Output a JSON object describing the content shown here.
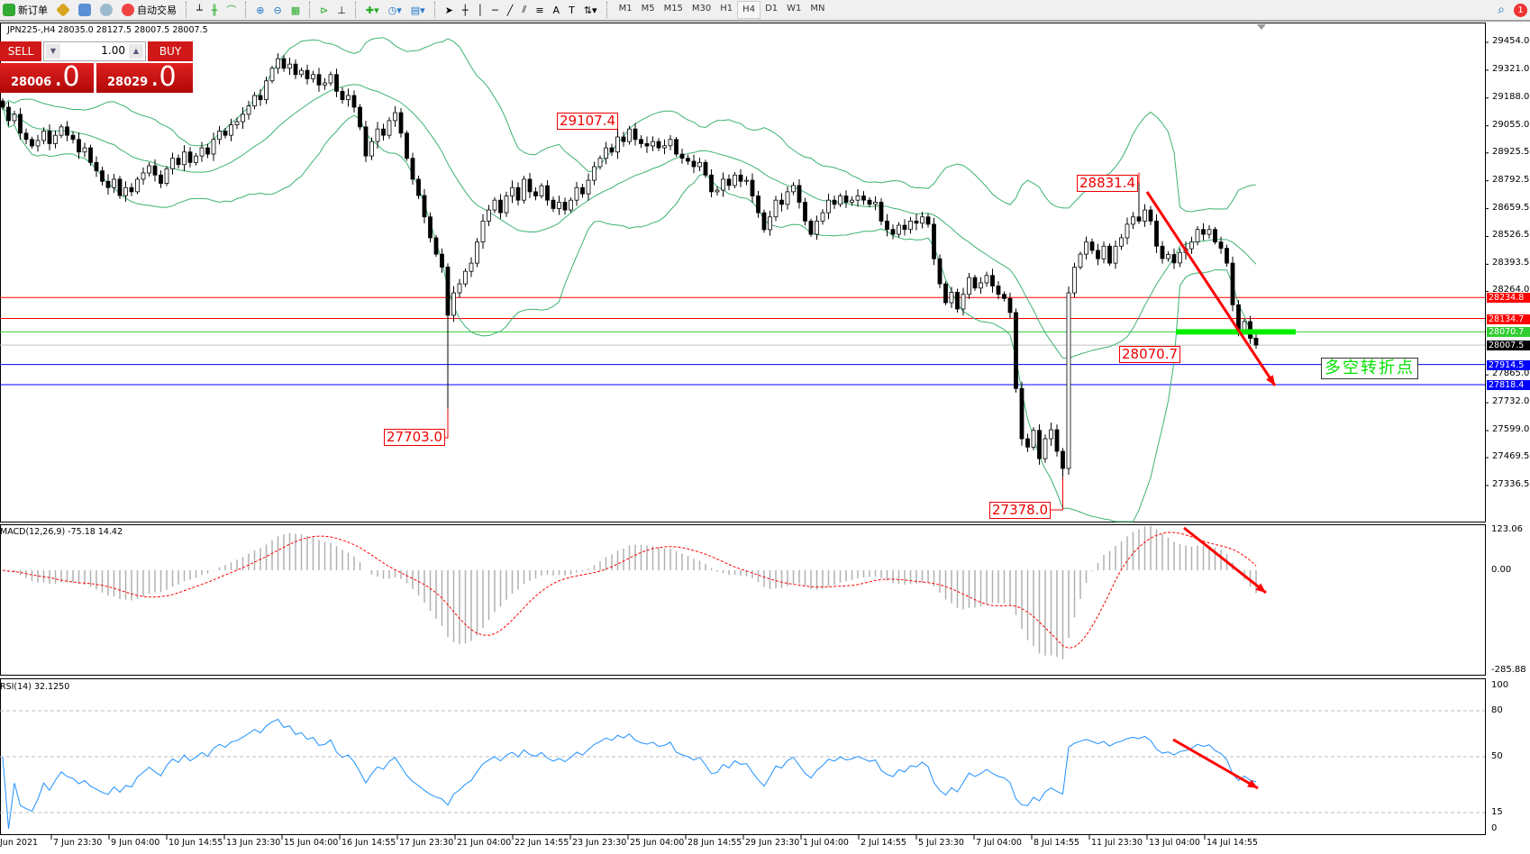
{
  "toolbar": {
    "new_order": "新订单",
    "auto_trading": "自动交易",
    "timeframes": [
      "M1",
      "M5",
      "M15",
      "M30",
      "H1",
      "H4",
      "D1",
      "W1",
      "MN"
    ],
    "active_timeframe": "H4",
    "notification_count": "1"
  },
  "chart_header": "JPN225-,H4  28035.0 28127.5 28007.5 28007.5",
  "trade_panel": {
    "sell_label": "SELL",
    "buy_label": "BUY",
    "lot": "1.00",
    "sell_price_main": "28006",
    "sell_price_frac": ".0",
    "buy_price_main": "28029",
    "buy_price_frac": ".0"
  },
  "price_axis": [
    "29454.0",
    "29321.0",
    "29188.0",
    "29055.0",
    "28925.5",
    "28792.5",
    "28659.5",
    "28526.5",
    "28393.5",
    "28264.0",
    "27865.0",
    "27732.0",
    "27599.0",
    "27469.5",
    "27336.5"
  ],
  "price_lines": [
    {
      "value": "28234.8",
      "color": "#ff0000"
    },
    {
      "value": "28134.7",
      "color": "#ff0000"
    },
    {
      "value": "28070.7",
      "color": "#32cd32"
    },
    {
      "value": "28007.5",
      "color": "#000000",
      "line": "#c0c0c0"
    },
    {
      "value": "27914.5",
      "color": "#0000ff"
    },
    {
      "value": "27818.4",
      "color": "#0000ff"
    }
  ],
  "macd": {
    "label": "MACD(12,26,9) -75.18 14.42",
    "axis": [
      "123.06",
      "0.00",
      "-285.88"
    ]
  },
  "rsi": {
    "label": "RSI(14) 32.1250",
    "axis": [
      "100",
      "80",
      "50",
      "15",
      "0"
    ]
  },
  "time_axis": [
    "Jun 2021",
    "7 Jun 23:30",
    "9 Jun 04:00",
    "10 Jun 14:55",
    "13 Jun 23:30",
    "15 Jun 04:00",
    "16 Jun 14:55",
    "17 Jun 23:30",
    "21 Jun 04:00",
    "22 Jun 14:55",
    "23 Jun 23:30",
    "25 Jun 04:00",
    "28 Jun 14:55",
    "29 Jun 23:30",
    "1 Jul 04:00",
    "2 Jul 14:55",
    "5 Jul 23:30",
    "7 Jul 04:00",
    "8 Jul 14:55",
    "11 Jul 23:30",
    "13 Jul 04:00",
    "14 Jul 14:55"
  ],
  "annotations": {
    "high1": {
      "text": "29107.4",
      "bar": 105
    },
    "high2": {
      "text": "28831.4",
      "bar": 194
    },
    "low1": {
      "text": "27703.0",
      "bar": 76
    },
    "low2": {
      "text": "27378.0",
      "bar": 181
    },
    "pivot_label": "28070.7",
    "pivot_text": "多空转折点"
  },
  "colors": {
    "bull": "#ffffff",
    "bear": "#000000",
    "bands": "#3cb371",
    "macd_signal": "#ff0000",
    "rsi": "#1e90ff",
    "arrow": "#ff0000",
    "pivot": "#00ee00"
  },
  "chart_data": {
    "type": "candlestick",
    "symbol": "JPN225-",
    "timeframe": "H4",
    "ylim": [
      27336.5,
      29454.0
    ],
    "indicators": [
      "Bollinger Bands",
      "MACD(12,26,9)",
      "RSI(14)"
    ],
    "closes": [
      29144,
      29080,
      29110,
      29020,
      28990,
      28959,
      28985,
      29030,
      28970,
      29010,
      29050,
      29010,
      28990,
      28930,
      28950,
      28880,
      28840,
      28790,
      28760,
      28800,
      28722,
      28760,
      28740,
      28800,
      28830,
      28864,
      28820,
      28780,
      28850,
      28900,
      28870,
      28930,
      28880,
      28911,
      28950,
      28920,
      28990,
      29030,
      29010,
      29060,
      29075,
      29110,
      29150,
      29200,
      29180,
      29270,
      29330,
      29376,
      29330,
      29350,
      29300,
      29320,
      29280,
      29300,
      29250,
      29260,
      29300,
      29220,
      29180,
      29200,
      29144,
      29050,
      28911,
      28980,
      29040,
      29010,
      29080,
      29118,
      29020,
      28900,
      28800,
      28722,
      28620,
      28520,
      28442,
      28380,
      28150,
      28257,
      28300,
      28360,
      28399,
      28500,
      28600,
      28653,
      28700,
      28640,
      28720,
      28760,
      28700,
      28800,
      28740,
      28720,
      28769,
      28700,
      28660,
      28690,
      28653,
      28700,
      28760,
      28730,
      28795,
      28860,
      28900,
      28950,
      28930,
      29002,
      28980,
      29040,
      28990,
      28970,
      28959,
      28980,
      28950,
      28960,
      28990,
      28920,
      28900,
      28886,
      28860,
      28880,
      28820,
      28740,
      28748,
      28800,
      28770,
      28820,
      28790,
      28795,
      28720,
      28640,
      28559,
      28620,
      28700,
      28680,
      28740,
      28770,
      28690,
      28600,
      28537,
      28600,
      28640,
      28700,
      28680,
      28720,
      28690,
      28700,
      28720,
      28700,
      28680,
      28690,
      28600,
      28560,
      28537,
      28580,
      28560,
      28600,
      28590,
      28620,
      28585,
      28420,
      28300,
      28210,
      28260,
      28180,
      28250,
      28330,
      28280,
      28305,
      28340,
      28290,
      28250,
      28230,
      28163,
      27800,
      27560,
      27520,
      27600,
      27465,
      27560,
      27603,
      27500,
      27418,
      28257,
      28380,
      28442,
      28500,
      28460,
      28420,
      28480,
      28399,
      28480,
      28520,
      28585,
      28620,
      28600,
      28653,
      28600,
      28480,
      28421,
      28440,
      28400,
      28450,
      28468,
      28500,
      28560,
      28537,
      28560,
      28500,
      28470,
      28399,
      28200,
      28072,
      28120,
      28040,
      28007.5
    ]
  }
}
